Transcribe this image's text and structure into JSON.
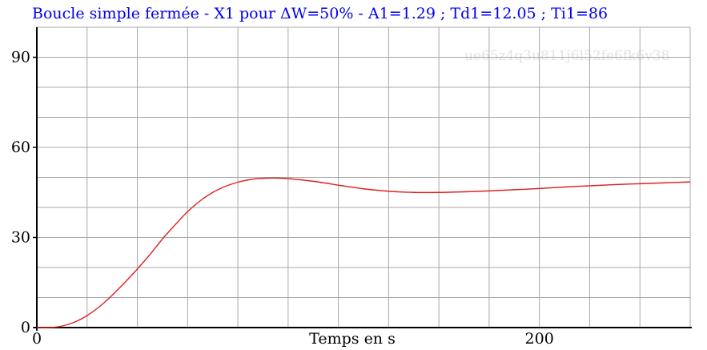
{
  "title": "Boucle simple fermée - X1 pour ΔW=50% - A1=1.29 ; Td1=12.05 ; Ti1=86",
  "watermark": "ue65z4q3u811j6l52fe6fk6v38",
  "colors": {
    "title": "#0000ee",
    "curve": "#dd2222",
    "grid": "#a8a8a8",
    "axis": "#000000",
    "watermark": "#e2e2e2"
  },
  "chart_data": {
    "type": "line",
    "title": "Boucle simple fermée - X1 pour ΔW=50% - A1=1.29 ; Td1=12.05 ; Ti1=86",
    "xlabel": "Temps en s",
    "ylabel": "",
    "xlim": [
      0,
      260
    ],
    "ylim": [
      0,
      100
    ],
    "grid": true,
    "x_grid_step": 20,
    "y_grid_step": 10,
    "x_tick_labels": [
      {
        "value": 0,
        "label": "0"
      },
      {
        "value": 200,
        "label": "200"
      }
    ],
    "y_tick_labels": [
      {
        "value": 0,
        "label": "0"
      },
      {
        "value": 30,
        "label": "30"
      },
      {
        "value": 60,
        "label": "60"
      },
      {
        "value": 90,
        "label": "90"
      }
    ],
    "series": [
      {
        "x": [
          0,
          5,
          10,
          15,
          20,
          25,
          30,
          35,
          40,
          45,
          50,
          55,
          60,
          65,
          70,
          75,
          80,
          85,
          90,
          95,
          100,
          105,
          110,
          115,
          120,
          125,
          130,
          140,
          150,
          160,
          170,
          180,
          190,
          200,
          210,
          220,
          230,
          240,
          250,
          260
        ],
        "values": [
          0,
          0,
          0.5,
          1.8,
          4,
          7,
          10.8,
          15,
          19.5,
          24.3,
          29.5,
          34.2,
          38.6,
          42.2,
          45,
          47,
          48.4,
          49.3,
          49.7,
          49.8,
          49.6,
          49.2,
          48.7,
          48.1,
          47.4,
          46.8,
          46.2,
          45.4,
          45,
          45,
          45.2,
          45.5,
          45.9,
          46.3,
          46.8,
          47.2,
          47.6,
          47.9,
          48.2,
          48.5
        ]
      }
    ]
  }
}
